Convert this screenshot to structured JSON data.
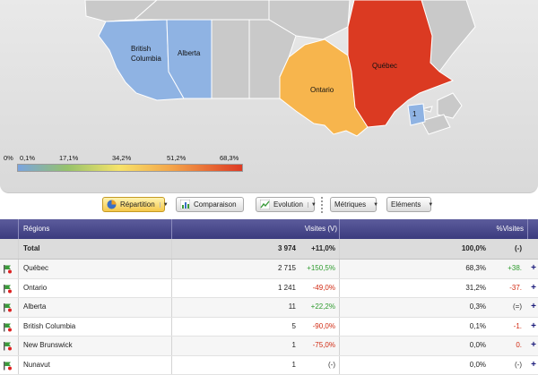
{
  "map": {
    "regions": {
      "british_columbia": "British\nColumbia",
      "alberta": "Alberta",
      "ontario": "Ontario",
      "quebec": "Québec",
      "new_brunswick_marker": "1"
    },
    "colors": {
      "british_columbia": "#8fb3e3",
      "alberta": "#8fb3e3",
      "ontario": "#f7b54d",
      "quebec": "#db3a22",
      "inactive": "#c9c9c9",
      "new_brunswick": "#8fb3e3"
    },
    "legend_ticks": [
      "0%",
      "0,1%",
      "17,1%",
      "34,2%",
      "51,2%",
      "68,3%"
    ]
  },
  "toolbar": {
    "repartition": "Répartition",
    "comparaison": "Comparaison",
    "evolution": "Evolution",
    "metriques": "Métriques",
    "elements": "Eléments"
  },
  "table": {
    "headers": {
      "regions": "Régions",
      "visites": "Visites (V)",
      "pct_visites": "%Visites"
    },
    "total": {
      "label": "Total",
      "visites": "3 974",
      "trend": "+11,0%",
      "pct": "100,0%",
      "pct_trend": "(-)"
    },
    "rows": [
      {
        "region": "Québec",
        "visites": "2 715",
        "trend": "+150,5%",
        "trend_kind": "pos",
        "pct": "68,3%",
        "pct_trend": "+38.",
        "pct_kind": "pos"
      },
      {
        "region": "Ontario",
        "visites": "1 241",
        "trend": "-49,0%",
        "trend_kind": "neg",
        "pct": "31,2%",
        "pct_trend": "-37.",
        "pct_kind": "neg"
      },
      {
        "region": "Alberta",
        "visites": "11",
        "trend": "+22,2%",
        "trend_kind": "pos",
        "pct": "0,3%",
        "pct_trend": "(=)",
        "pct_kind": "neu"
      },
      {
        "region": "British Columbia",
        "visites": "5",
        "trend": "-90,0%",
        "trend_kind": "neg",
        "pct": "0,1%",
        "pct_trend": "-1.",
        "pct_kind": "neg"
      },
      {
        "region": "New Brunswick",
        "visites": "1",
        "trend": "-75,0%",
        "trend_kind": "neg",
        "pct": "0,0%",
        "pct_trend": "0.",
        "pct_kind": "neg"
      },
      {
        "region": "Nunavut",
        "visites": "1",
        "trend": "(-)",
        "trend_kind": "neu",
        "pct": "0,0%",
        "pct_trend": "(-)",
        "pct_kind": "neu"
      }
    ],
    "plus_symbol": "+"
  }
}
